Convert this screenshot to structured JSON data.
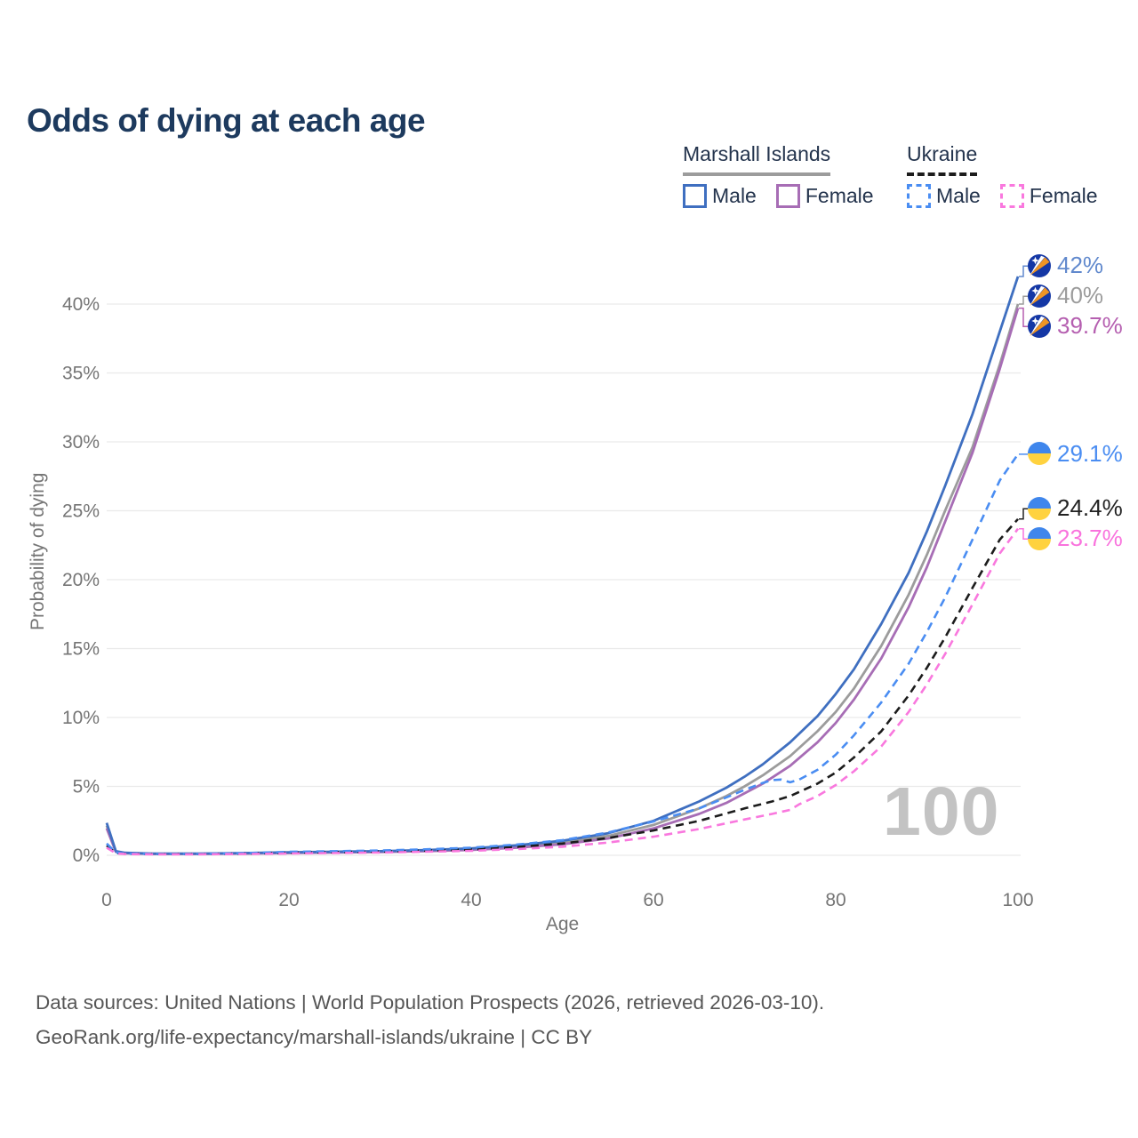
{
  "title": "Odds of dying at each age",
  "title_color": "#1d3a5e",
  "legend_text_color": "#24344d",
  "legend": {
    "groups": [
      {
        "label": "Marshall Islands",
        "underline_series": 1,
        "items": [
          {
            "label": "Male",
            "series": 0
          },
          {
            "label": "Female",
            "series": 2
          }
        ]
      },
      {
        "label": "Ukraine",
        "underline_series": 4,
        "items": [
          {
            "label": "Male",
            "series": 3
          },
          {
            "label": "Female",
            "series": 5
          }
        ]
      }
    ]
  },
  "watermark": "100",
  "footer": {
    "line1": "Data sources: United Nations | World Population Prospects (2026, retrieved 2026-03-10).",
    "line2": "GeoRank.org/life-expectancy/marshall-islands/ukraine | CC BY"
  },
  "chart_data": {
    "type": "line",
    "title": "Odds of dying at each age",
    "xlabel": "Age",
    "ylabel": "Probability of dying",
    "xlim": [
      0,
      100
    ],
    "ylim": [
      0,
      43
    ],
    "grid": "horizontal",
    "legend_position": "top-right",
    "x_ticks": [
      {
        "v": 0,
        "label": "0"
      },
      {
        "v": 20,
        "label": "20"
      },
      {
        "v": 40,
        "label": "40"
      },
      {
        "v": 60,
        "label": "60"
      },
      {
        "v": 80,
        "label": "80"
      },
      {
        "v": 100,
        "label": "100"
      }
    ],
    "y_ticks": [
      {
        "v": 0,
        "label": "0%"
      },
      {
        "v": 5,
        "label": "5%"
      },
      {
        "v": 10,
        "label": "10%"
      },
      {
        "v": 15,
        "label": "15%"
      },
      {
        "v": 20,
        "label": "20%"
      },
      {
        "v": 25,
        "label": "25%"
      },
      {
        "v": 30,
        "label": "30%"
      },
      {
        "v": 35,
        "label": "35%"
      },
      {
        "v": 40,
        "label": "40%"
      }
    ],
    "series": [
      {
        "name": "Marshall Islands Male",
        "country": "Marshall Islands",
        "sex": "male",
        "color": "#3f6fc0",
        "dashed": false,
        "flag": "marshall-islands",
        "end_label": {
          "text": "42%",
          "color": "#6189cd"
        },
        "points": [
          [
            0,
            2.35
          ],
          [
            1,
            0.3
          ],
          [
            2,
            0.18
          ],
          [
            5,
            0.12
          ],
          [
            10,
            0.12
          ],
          [
            15,
            0.16
          ],
          [
            20,
            0.22
          ],
          [
            25,
            0.26
          ],
          [
            30,
            0.3
          ],
          [
            35,
            0.38
          ],
          [
            40,
            0.5
          ],
          [
            45,
            0.72
          ],
          [
            50,
            1.05
          ],
          [
            55,
            1.6
          ],
          [
            60,
            2.5
          ],
          [
            65,
            3.9
          ],
          [
            68,
            4.9
          ],
          [
            70,
            5.7
          ],
          [
            72,
            6.6
          ],
          [
            75,
            8.2
          ],
          [
            78,
            10.1
          ],
          [
            80,
            11.7
          ],
          [
            82,
            13.5
          ],
          [
            85,
            16.8
          ],
          [
            88,
            20.5
          ],
          [
            90,
            23.5
          ],
          [
            92,
            26.8
          ],
          [
            95,
            32.0
          ],
          [
            98,
            38.0
          ],
          [
            100,
            42.0
          ]
        ]
      },
      {
        "name": "Marshall Islands (both sexes)",
        "country": "Marshall Islands",
        "sex": "both",
        "color": "#9c9c9c",
        "dashed": false,
        "flag": "marshall-islands",
        "end_label": {
          "text": "40%",
          "color": "#9c9c9c"
        },
        "points": [
          [
            0,
            2.15
          ],
          [
            1,
            0.27
          ],
          [
            2,
            0.16
          ],
          [
            5,
            0.11
          ],
          [
            10,
            0.11
          ],
          [
            15,
            0.14
          ],
          [
            20,
            0.19
          ],
          [
            25,
            0.23
          ],
          [
            30,
            0.27
          ],
          [
            35,
            0.34
          ],
          [
            40,
            0.44
          ],
          [
            45,
            0.63
          ],
          [
            50,
            0.92
          ],
          [
            55,
            1.4
          ],
          [
            60,
            2.2
          ],
          [
            65,
            3.4
          ],
          [
            68,
            4.3
          ],
          [
            70,
            5.0
          ],
          [
            72,
            5.8
          ],
          [
            75,
            7.2
          ],
          [
            78,
            9.0
          ],
          [
            80,
            10.4
          ],
          [
            82,
            12.1
          ],
          [
            85,
            15.2
          ],
          [
            88,
            18.9
          ],
          [
            90,
            21.8
          ],
          [
            92,
            25.0
          ],
          [
            95,
            29.6
          ],
          [
            98,
            35.6
          ],
          [
            100,
            40.0
          ]
        ]
      },
      {
        "name": "Marshall Islands Female",
        "country": "Marshall Islands",
        "sex": "female",
        "color": "#a76db5",
        "dashed": false,
        "flag": "marshall-islands",
        "end_label": {
          "text": "39.7%",
          "color": "#b55fb0"
        },
        "points": [
          [
            0,
            1.95
          ],
          [
            1,
            0.25
          ],
          [
            2,
            0.15
          ],
          [
            5,
            0.1
          ],
          [
            10,
            0.1
          ],
          [
            15,
            0.12
          ],
          [
            20,
            0.16
          ],
          [
            25,
            0.2
          ],
          [
            30,
            0.24
          ],
          [
            35,
            0.3
          ],
          [
            40,
            0.39
          ],
          [
            45,
            0.55
          ],
          [
            50,
            0.8
          ],
          [
            55,
            1.22
          ],
          [
            60,
            1.95
          ],
          [
            65,
            3.0
          ],
          [
            68,
            3.8
          ],
          [
            70,
            4.5
          ],
          [
            72,
            5.2
          ],
          [
            75,
            6.5
          ],
          [
            78,
            8.2
          ],
          [
            80,
            9.6
          ],
          [
            82,
            11.3
          ],
          [
            85,
            14.3
          ],
          [
            88,
            18.0
          ],
          [
            90,
            20.9
          ],
          [
            92,
            24.2
          ],
          [
            95,
            29.2
          ],
          [
            98,
            35.3
          ],
          [
            100,
            39.7
          ]
        ]
      },
      {
        "name": "Ukraine Male",
        "country": "Ukraine",
        "sex": "male",
        "color": "#4a8df2",
        "dashed": true,
        "flag": "ukraine",
        "end_label": {
          "text": "29.1%",
          "color": "#4a8df2"
        },
        "points": [
          [
            0,
            0.85
          ],
          [
            1,
            0.2
          ],
          [
            2,
            0.12
          ],
          [
            5,
            0.1
          ],
          [
            10,
            0.1
          ],
          [
            15,
            0.15
          ],
          [
            20,
            0.25
          ],
          [
            25,
            0.3
          ],
          [
            30,
            0.35
          ],
          [
            35,
            0.43
          ],
          [
            40,
            0.55
          ],
          [
            45,
            0.78
          ],
          [
            50,
            1.1
          ],
          [
            55,
            1.65
          ],
          [
            60,
            2.45
          ],
          [
            65,
            3.4
          ],
          [
            68,
            4.2
          ],
          [
            70,
            4.75
          ],
          [
            72,
            5.25
          ],
          [
            73,
            5.45
          ],
          [
            74,
            5.5
          ],
          [
            75,
            5.3
          ],
          [
            76,
            5.5
          ],
          [
            78,
            6.2
          ],
          [
            80,
            7.3
          ],
          [
            82,
            8.7
          ],
          [
            85,
            11.1
          ],
          [
            88,
            13.9
          ],
          [
            90,
            16.2
          ],
          [
            92,
            18.7
          ],
          [
            95,
            22.9
          ],
          [
            98,
            27.2
          ],
          [
            100,
            29.1
          ]
        ]
      },
      {
        "name": "Ukraine (both sexes)",
        "country": "Ukraine",
        "sex": "both",
        "color": "#1c1c1c",
        "dashed": true,
        "flag": "ukraine",
        "end_label": {
          "text": "24.4%",
          "color": "#222222"
        },
        "points": [
          [
            0,
            0.7
          ],
          [
            1,
            0.17
          ],
          [
            2,
            0.11
          ],
          [
            5,
            0.09
          ],
          [
            10,
            0.09
          ],
          [
            15,
            0.12
          ],
          [
            20,
            0.19
          ],
          [
            25,
            0.23
          ],
          [
            30,
            0.27
          ],
          [
            35,
            0.34
          ],
          [
            40,
            0.42
          ],
          [
            45,
            0.6
          ],
          [
            50,
            0.85
          ],
          [
            55,
            1.25
          ],
          [
            60,
            1.8
          ],
          [
            65,
            2.5
          ],
          [
            70,
            3.4
          ],
          [
            73,
            3.9
          ],
          [
            75,
            4.3
          ],
          [
            76,
            4.6
          ],
          [
            78,
            5.2
          ],
          [
            80,
            6.0
          ],
          [
            82,
            7.1
          ],
          [
            85,
            9.0
          ],
          [
            88,
            11.6
          ],
          [
            90,
            13.6
          ],
          [
            92,
            15.8
          ],
          [
            95,
            19.4
          ],
          [
            98,
            22.9
          ],
          [
            100,
            24.4
          ]
        ]
      },
      {
        "name": "Ukraine Female",
        "country": "Ukraine",
        "sex": "female",
        "color": "#f978de",
        "dashed": true,
        "flag": "ukraine",
        "end_label": {
          "text": "23.7%",
          "color": "#f973dd"
        },
        "points": [
          [
            0,
            0.55
          ],
          [
            1,
            0.14
          ],
          [
            2,
            0.09
          ],
          [
            5,
            0.07
          ],
          [
            10,
            0.07
          ],
          [
            15,
            0.09
          ],
          [
            20,
            0.13
          ],
          [
            25,
            0.16
          ],
          [
            30,
            0.2
          ],
          [
            35,
            0.26
          ],
          [
            40,
            0.32
          ],
          [
            45,
            0.45
          ],
          [
            50,
            0.62
          ],
          [
            55,
            0.92
          ],
          [
            60,
            1.35
          ],
          [
            65,
            1.9
          ],
          [
            70,
            2.6
          ],
          [
            73,
            3.0
          ],
          [
            75,
            3.3
          ],
          [
            76,
            3.7
          ],
          [
            78,
            4.3
          ],
          [
            80,
            5.1
          ],
          [
            82,
            6.1
          ],
          [
            85,
            7.9
          ],
          [
            88,
            10.4
          ],
          [
            90,
            12.4
          ],
          [
            92,
            14.6
          ],
          [
            95,
            18.2
          ],
          [
            98,
            21.9
          ],
          [
            100,
            23.7
          ]
        ]
      }
    ]
  }
}
